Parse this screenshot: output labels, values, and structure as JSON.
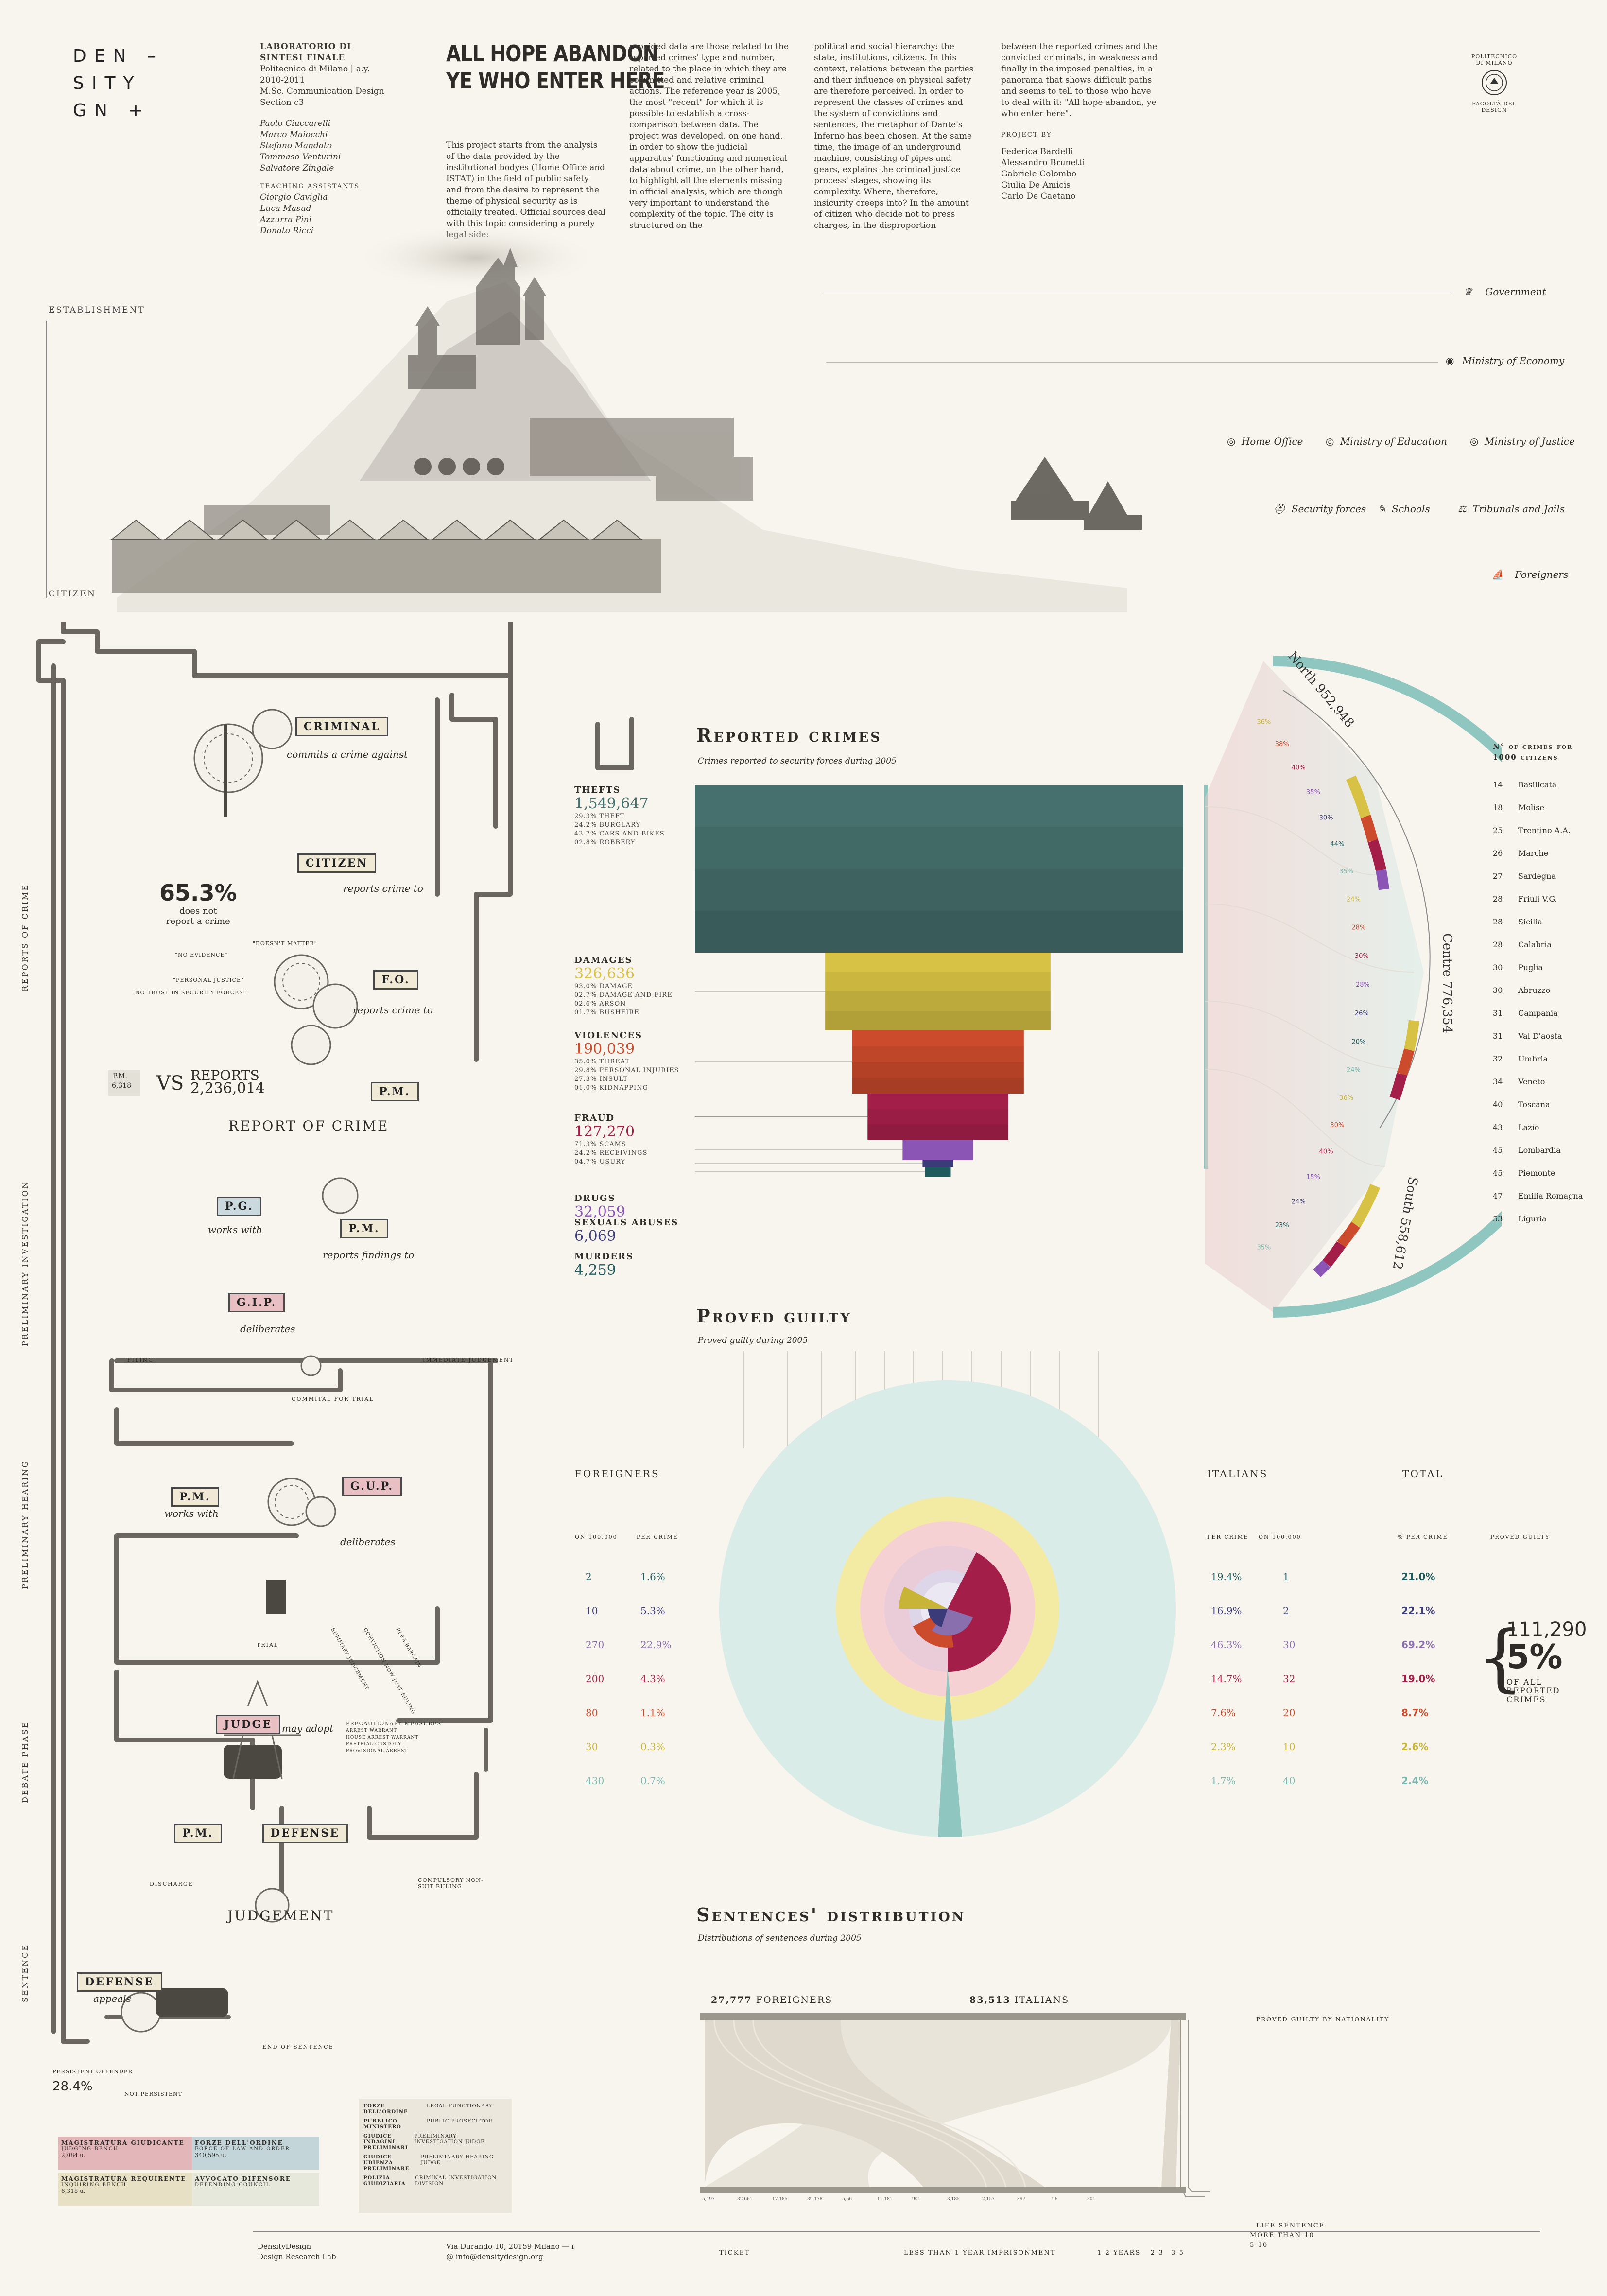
{
  "logo": {
    "lines": [
      "DEN –",
      "SITY",
      "GN +"
    ]
  },
  "credits": {
    "course": "LABORATORIO DI SINTESI FINALE",
    "info": [
      "Politecnico di Milano | a.y. 2010-2011",
      "M.Sc. Communication Design",
      "Section c3"
    ],
    "authors": [
      "Paolo Ciuccarelli",
      "Marco Maiocchi",
      "Stefano Mandato",
      "Tommaso Venturini",
      "Salvatore Zingale"
    ],
    "assistants_label": "TEACHING ASSISTANTS",
    "assistants": [
      "Giorgio Caviglia",
      "Luca Masud",
      "Azzurra Pini",
      "Donato Ricci"
    ]
  },
  "title": {
    "line1": "ALL HOPE ABANDON",
    "line2": "YE WHO ENTER HERE"
  },
  "intro": {
    "col1": "This project starts from the analysis of the data provided by the institutional bodyes (Home Office and ISTAT) in the field of public safety and from the desire to represent the theme of physical security as is officially treated. Official sources deal with this topic considering a purely legal side:",
    "col2": "provided data are those related to the reported crimes' type and number, related to the place in which they are committed and relative criminal actions. The reference year is 2005, the most \"recent\" for which it is possible to establish a cross-comparison between data. The project was developed, on one hand, in order to show the judicial apparatus' functioning and numerical data about crime, on the other hand, to highlight all the elements missing in official analysis, which are though very important to understand the complexity of the topic. The city is structured on the",
    "col3": "political and social hierarchy: the state, institutions, citizens. In this context, relations between the parties and their influence on physical safety are therefore perceived. In order to represent the classes of crimes and the system of convictions and sentences, the metaphor of Dante's Inferno has been chosen. At the same time, the image of an underground machine, consisting of pipes and gears, explains the criminal justice process' stages, showing its complexity. Where, therefore, insicurity creeps into? In the amount of citizen who decide not to press charges, in the disproportion",
    "col4": "between the reported crimes and the convicted criminals, in weakness and finally in the imposed penalties, in a panorama that shows difficult paths and seems to tell to those who have to deal with it: \"All hope abandon, ye who enter here\".",
    "project_by_label": "PROJECT BY",
    "project_by": [
      "Federica Bardelli",
      "Alessandro Brunetti",
      "Gabriele Colombo",
      "Giulia De Amicis",
      "Carlo De Gaetano"
    ]
  },
  "polimi": {
    "top": "POLITECNICO DI MILANO",
    "bottom": "FACOLTÀ DEL DESIGN"
  },
  "city": {
    "establishment": "ESTABLISHMENT",
    "citizen": "CITIZEN",
    "institutions": [
      "Government",
      "Ministry of Economy",
      "Home Office",
      "Ministry of Education",
      "Ministry of Justice",
      "Security forces",
      "Schools",
      "Tribunals and Jails",
      "Foreigners"
    ]
  },
  "stages": [
    "REPORTS OF CRIME",
    "PRELIMINARY INVESTIGATION",
    "PRELIMINARY HEARING",
    "DEBATE PHASE",
    "SENTENCE"
  ],
  "machine": {
    "criminal": "CRIMINAL",
    "commits": "commits a crime against",
    "citizen": "CITIZEN",
    "reports_to": "reports crime to",
    "pct_not_report": "65.3%",
    "not_report_label1": "does not",
    "not_report_label2": "report a crime",
    "quotes": [
      "\"NO EVIDENCE\"",
      "\"DOESN'T MATTER\"",
      "\"PERSONAL JUSTICE\"",
      "\"NO TRUST IN SECURITY FORCES\""
    ],
    "fo": "F.O.",
    "fo_reports": "reports crime to",
    "pm": "P.M.",
    "pm_label": "P.M.",
    "pm_value": "6,318",
    "vs": "VS",
    "reports_label": "REPORTS",
    "reports_value": "2,236,014",
    "report_of_crime": "REPORT OF CRIME",
    "pg": "P.G.",
    "works_with": "works with",
    "reports_findings": "reports findings to",
    "gip": "G.I.P.",
    "deliberates": "deliberates",
    "filing": "FILING",
    "immediate": "IMMEDIATE JUDGEMENT",
    "committal": "COMMITAL FOR TRIAL",
    "gup": "G.U.P.",
    "trial": "TRIAL",
    "trial_options": [
      "SUMMARY JUDGEMENT",
      "CONVICTION NOW JUST RULING",
      "PLEA BARGAIN"
    ],
    "judge": "JUDGE",
    "may_adopt": "may adopt",
    "precautionary": "PRECAUTIONARY MEASURES",
    "precautionary_items": [
      "ARREST WARRANT",
      "HOUSE ARREST WARRANT",
      "PRETRIAL CUSTODY",
      "PROVISIONAL ARREST"
    ],
    "defense": "DEFENSE",
    "discharge": "DISCHARGE",
    "compulsory": "COMPULSORY NON-SUIT RULING",
    "judgement": "JUDGEMENT",
    "appeals": "appeals",
    "end_sentence": "END OF SENTENCE",
    "persistent": "PERSISTENT OFFENDER",
    "persistent_pct": "28.4%",
    "not_persistent": "NOT PERSISTENT"
  },
  "legend": {
    "boxes": [
      {
        "title": "MAGISTRATURA GIUDICANTE",
        "sub": "JUDGING BENCH",
        "value": "2,084 u.",
        "color": "#e3b6ba"
      },
      {
        "title": "FORZE DELL'ORDINE",
        "sub": "FORCE OF LAW AND ORDER",
        "value": "340,595 u.",
        "color": "#c4d5da"
      },
      {
        "title": "MAGISTRATURA REQUIRENTE",
        "sub": "INQUIRING BENCH",
        "value": "6,318 u.",
        "color": "#e7e0c4"
      },
      {
        "title": "AVVOCATO DIFENSORE",
        "sub": "DEFENDING COUNCIL",
        "value": "",
        "color": "#e6e8dc"
      }
    ],
    "glossary": [
      [
        "FORZE DELL'ORDINE",
        "LEGAL FUNCTIONARY"
      ],
      [
        "PUBBLICO MINISTERO",
        "PUBLIC PROSECUTOR"
      ],
      [
        "GIUDICE INDAGINI PRELIMINARI",
        "PRELIMINARY INVESTIGATION JUDGE"
      ],
      [
        "GIUDICE UDIENZA PRELIMINARE",
        "PRELIMINARY HEARING JUDGE"
      ],
      [
        "POLIZIA GIUDIZIARIA",
        "CRIMINAL INVESTIGATION DIVISION"
      ]
    ]
  },
  "footer": {
    "lab1": "DensityDesign",
    "lab2": "Design Research Lab",
    "addr1": "Via Durando 10, 20159 Milano — i",
    "addr2": "@ info@densitydesign.org"
  },
  "colors": {
    "thefts": "#46706d",
    "damages": "#d8c245",
    "violences": "#cc4b2c",
    "fraud": "#a31f49",
    "drugs": "#8a55b5",
    "sexual": "#3b3b7a",
    "murders": "#1f5a5c",
    "teal": "#8fc7c0"
  },
  "chart_data": [
    {
      "type": "bar",
      "title": "Reported crimes",
      "subtitle": "Crimes reported to security forces during 2005",
      "categories": [
        "THEFTS",
        "DAMAGES",
        "VIOLENCES",
        "FRAUD",
        "DRUGS",
        "SEXUALS ABUSES",
        "MURDERS"
      ],
      "values": [
        1549647,
        326636,
        190039,
        127270,
        32059,
        6069,
        4259
      ],
      "labels": [
        "1,549,647",
        "326,636",
        "190,039",
        "127,270",
        "32,059",
        "6,069",
        "4,259"
      ],
      "breakdowns": [
        [
          "29.3% THEFT",
          "24.2% BURGLARY",
          "43.7% CARS AND BIKES",
          "02.8% ROBBERY"
        ],
        [
          "93.0% DAMAGE",
          "02.7% DAMAGE AND FIRE",
          "02.6% ARSON",
          "01.7% BUSHFIRE"
        ],
        [
          "35.0% THREAT",
          "29.8% PERSONAL INJURIES",
          "27.3% INSULT",
          "01.0% KIDNAPPING"
        ],
        [
          "71.3% SCAMS",
          "24.2% RECEIVINGS",
          "04.7% USURY"
        ],
        [],
        [],
        []
      ]
    },
    {
      "type": "pie",
      "title": "Reported crimes by area",
      "areas": [
        {
          "name": "North",
          "value": "952,948",
          "label": "North 952,948"
        },
        {
          "name": "Centre",
          "value": "776,354",
          "label": "Centre 776,354"
        },
        {
          "name": "South",
          "value": "558,612",
          "label": "South 558,612"
        }
      ],
      "slice_labels": [
        "36%",
        "38%",
        "40%",
        "35%",
        "30%",
        "44%",
        "35%",
        "24%",
        "28%",
        "30%",
        "28%",
        "26%",
        "20%",
        "24%",
        "36%",
        "30%",
        "40%",
        "15%",
        "24%",
        "23%",
        "35%"
      ]
    },
    {
      "type": "table",
      "title": "N° of crimes for 1000 citizens",
      "rows": [
        [
          "14",
          "Basilicata"
        ],
        [
          "18",
          "Molise"
        ],
        [
          "25",
          "Trentino A.A."
        ],
        [
          "26",
          "Marche"
        ],
        [
          "27",
          "Sardegna"
        ],
        [
          "28",
          "Friuli V.G."
        ],
        [
          "28",
          "Sicilia"
        ],
        [
          "28",
          "Calabria"
        ],
        [
          "30",
          "Puglia"
        ],
        [
          "30",
          "Abruzzo"
        ],
        [
          "31",
          "Campania"
        ],
        [
          "31",
          "Val D'aosta"
        ],
        [
          "32",
          "Umbria"
        ],
        [
          "34",
          "Veneto"
        ],
        [
          "40",
          "Toscana"
        ],
        [
          "43",
          "Lazio"
        ],
        [
          "45",
          "Lombardia"
        ],
        [
          "45",
          "Piemonte"
        ],
        [
          "47",
          "Emilia Romagna"
        ],
        [
          "53",
          "Liguria"
        ]
      ]
    },
    {
      "type": "pie",
      "title": "Proved guilty",
      "subtitle": "Proved guilty during 2005",
      "headers": {
        "foreigners": "FOREIGNERS",
        "italians": "ITALIANS",
        "total": "TOTAL",
        "on100k": "ON 100.000",
        "per_crime": "PER CRIME",
        "pct_per_crime": "% PER CRIME",
        "proved_guilty": "PROVED GUILTY"
      },
      "rows": [
        {
          "f_on100k": "2",
          "f_pct": "1.6%",
          "i_pct": "19.4%",
          "i_on100k": "1",
          "total": "21.0%",
          "color": "#1f5a5c"
        },
        {
          "f_on100k": "10",
          "f_pct": "5.3%",
          "i_pct": "16.9%",
          "i_on100k": "2",
          "total": "22.1%",
          "color": "#3b3b7a"
        },
        {
          "f_on100k": "270",
          "f_pct": "22.9%",
          "i_pct": "46.3%",
          "i_on100k": "30",
          "total": "69.2%",
          "color": "#8a6fae"
        },
        {
          "f_on100k": "200",
          "f_pct": "4.3%",
          "i_pct": "14.7%",
          "i_on100k": "32",
          "total": "19.0%",
          "color": "#a31f49"
        },
        {
          "f_on100k": "80",
          "f_pct": "1.1%",
          "i_pct": "7.6%",
          "i_on100k": "20",
          "total": "8.7%",
          "color": "#cc4b2c"
        },
        {
          "f_on100k": "30",
          "f_pct": "0.3%",
          "i_pct": "2.3%",
          "i_on100k": "10",
          "total": "2.6%",
          "color": "#c8b437"
        },
        {
          "f_on100k": "430",
          "f_pct": "0.7%",
          "i_pct": "1.7%",
          "i_on100k": "40",
          "total": "2.4%",
          "color": "#7ab7ae"
        }
      ],
      "summary_value": "111,290",
      "summary_pct": "5%",
      "summary_label": [
        "OF ALL",
        "REPORTED",
        "CRIMES"
      ]
    },
    {
      "type": "area",
      "title": "Sentences' distribution",
      "subtitle": "Distributions of sentences during 2005",
      "series": [
        {
          "name": "FOREIGNERS",
          "value": "27,777"
        },
        {
          "name": "ITALIANS",
          "value": "83,513"
        }
      ],
      "legend": "PROVED GUILTY BY NATIONALITY",
      "categories": [
        "TICKET",
        "LESS THAN 1 YEAR IMPRISONMENT",
        "1-2 YEARS",
        "2-3",
        "3-5",
        "5-10",
        "MORE THAN 10",
        "LIFE SENTENCE"
      ],
      "bottom_values": [
        "5,197",
        "32,661",
        "17,185",
        "39,178",
        "5,66",
        "11,181",
        "901",
        "3,185",
        "2,157",
        "897",
        "96",
        "301"
      ]
    }
  ]
}
